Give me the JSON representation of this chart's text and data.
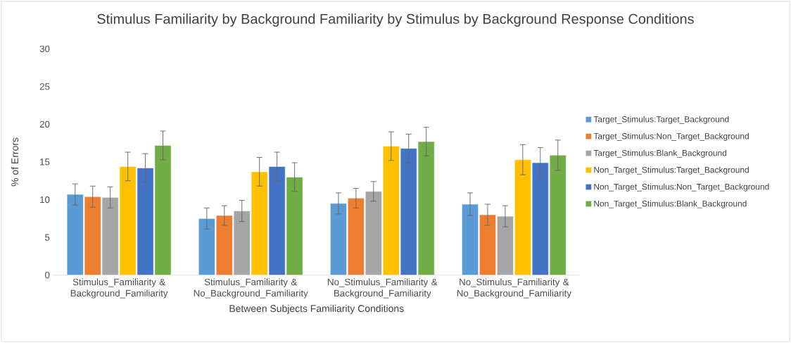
{
  "chart_data": {
    "type": "bar",
    "title": "Stimulus Familiarity by Background Familiarity by Stimulus by Background Response Conditions",
    "xlabel": "Between Subjects Familiarity Conditions",
    "ylabel": "% of Errors",
    "categories": [
      "Stimulus_Familiarity & Background_Familiarity",
      "Stimulus_Familiarity & No_Background_Familiarity",
      "No_Stimulus_Familiarity & Background_Familiarity",
      "No_Stimulus_Familiarity & No_Background_Familiarity"
    ],
    "series": [
      {
        "name": "Target_Stimulus:Target_Background",
        "color": "#5b9bd5",
        "values": [
          10.7,
          7.5,
          9.5,
          9.4
        ],
        "errors": [
          1.4,
          1.4,
          1.4,
          1.5
        ]
      },
      {
        "name": "Target_Stimulus:Non_Target_Background",
        "color": "#ed7d31",
        "values": [
          10.4,
          7.9,
          10.2,
          8.0
        ],
        "errors": [
          1.4,
          1.3,
          1.3,
          1.4
        ]
      },
      {
        "name": "Target_Stimulus:Blank_Background",
        "color": "#a5a5a5",
        "values": [
          10.3,
          8.5,
          11.1,
          7.8
        ],
        "errors": [
          1.4,
          1.4,
          1.3,
          1.4
        ]
      },
      {
        "name": "Non_Target_Stimulus:Target_Background",
        "color": "#ffc000",
        "values": [
          14.4,
          13.7,
          17.1,
          15.3
        ],
        "errors": [
          1.9,
          1.9,
          1.9,
          2.0
        ]
      },
      {
        "name": "Non_Target_Stimulus:Non_Target_Background",
        "color": "#4472c4",
        "values": [
          14.2,
          14.4,
          16.8,
          14.9
        ],
        "errors": [
          1.9,
          1.9,
          1.9,
          2.0
        ]
      },
      {
        "name": "Non_Target_Stimulus:Blank_Background",
        "color": "#70ad47",
        "values": [
          17.2,
          13.0,
          17.7,
          15.9
        ],
        "errors": [
          1.9,
          1.9,
          1.9,
          2.0
        ]
      }
    ],
    "ylim": [
      0,
      30
    ],
    "yticks": [
      0,
      5,
      10,
      15,
      20,
      25,
      30
    ],
    "grid": false,
    "legend": "right"
  }
}
